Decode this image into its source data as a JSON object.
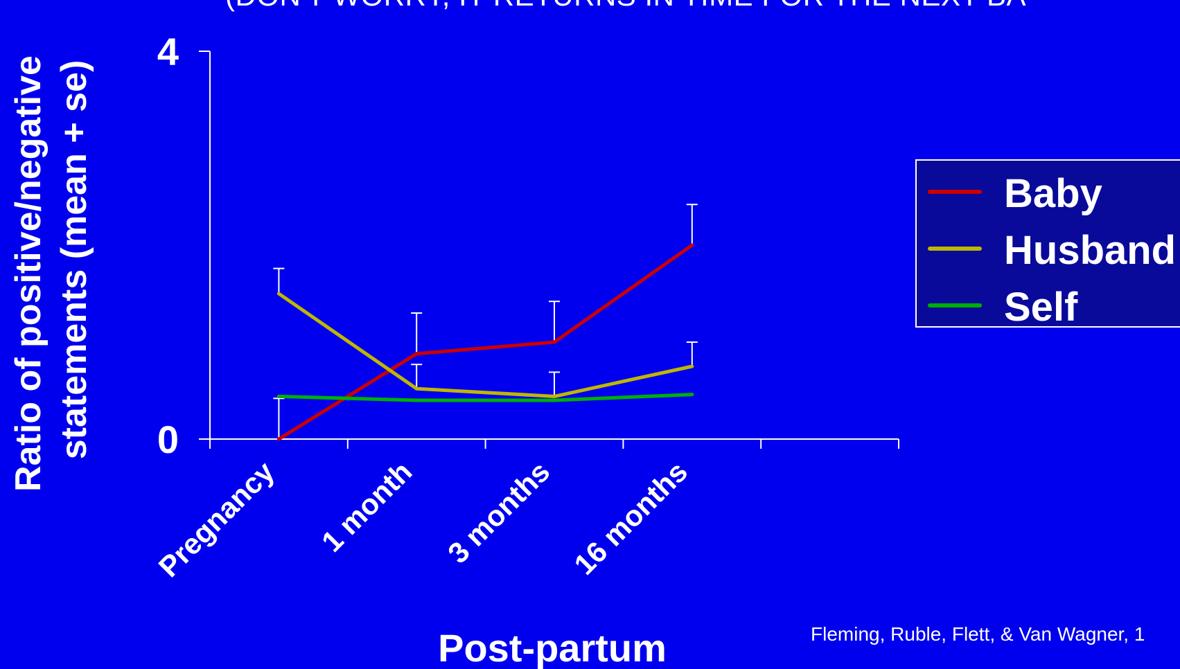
{
  "header": {
    "title_partial": "(DON'T WORRY, IT RETURNS IN TIME FOR THE NEXT BA"
  },
  "citation": "Fleming, Ruble, Flett, & Van Wagner, 1",
  "colors": {
    "background": "#0000EE",
    "axis": "#FFFFFF",
    "baby": "#CC0000",
    "husband": "#BFB600",
    "self": "#00B000",
    "legend_bg": "#0A0A9A"
  },
  "chart_data": {
    "type": "line",
    "xlabel": "Post-partum",
    "ylabel_line1": "Ratio of positive/negative",
    "ylabel_line2": "statements (mean + se)",
    "ytick_labels": [
      "0",
      "4"
    ],
    "ylim": [
      0,
      4
    ],
    "categories": [
      "Pregnancy",
      "1 month",
      "3 months",
      "16 months"
    ],
    "x_slots": 5,
    "legend_position": "right",
    "series": [
      {
        "name": "Baby",
        "values": [
          0.0,
          0.88,
          1.0,
          2.0
        ],
        "se": [
          0.42,
          0.42,
          0.42,
          0.42
        ],
        "color_key": "baby"
      },
      {
        "name": "Husband",
        "values": [
          1.5,
          0.52,
          0.44,
          0.75
        ],
        "se": [
          0.26,
          0.25,
          0.25,
          0.25
        ],
        "color_key": "husband"
      },
      {
        "name": "Self",
        "values": [
          0.44,
          0.4,
          0.4,
          0.46
        ],
        "se": null,
        "color_key": "self"
      }
    ]
  }
}
